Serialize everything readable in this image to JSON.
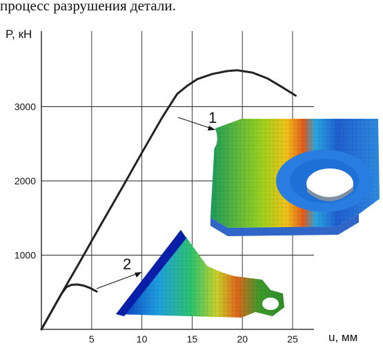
{
  "caption": "процесс разрушения детали.",
  "chart_data": {
    "type": "line",
    "xlabel": "u, мм",
    "ylabel": "P, кН",
    "xlim": [
      0,
      27
    ],
    "ylim": [
      0,
      4000
    ],
    "grid": true,
    "x_ticks": [
      5,
      10,
      15,
      20,
      25
    ],
    "y_ticks": [
      1000,
      2000,
      3000
    ],
    "x_tick_labels": [
      "5",
      "10",
      "15",
      "20",
      "25"
    ],
    "y_tick_labels": [
      "1000",
      "2000",
      "3000"
    ],
    "series": [
      {
        "x": [
          0,
          2,
          4,
          6,
          8,
          10,
          12,
          13.5,
          14.5,
          15.5,
          17,
          18.5,
          19.5,
          21,
          22.5,
          24,
          25.3
        ],
        "values": [
          0,
          480,
          950,
          1430,
          1900,
          2380,
          2850,
          3170,
          3280,
          3370,
          3440,
          3480,
          3490,
          3460,
          3380,
          3260,
          3150
        ]
      },
      {
        "x": [
          0,
          1,
          2,
          2.5,
          3,
          3.6,
          4.2,
          4.8,
          5.5
        ],
        "values": [
          0,
          240,
          480,
          570,
          600,
          605,
          590,
          560,
          510
        ]
      }
    ],
    "annotations": [
      {
        "label": "1",
        "x": 13.9,
        "y": 3140
      },
      {
        "label": "2",
        "x": 5.4,
        "y": 550
      }
    ]
  },
  "images": {
    "inset_1": "fea-bracket-lug-contour",
    "inset_2": "fea-fractured-lug-contour"
  }
}
